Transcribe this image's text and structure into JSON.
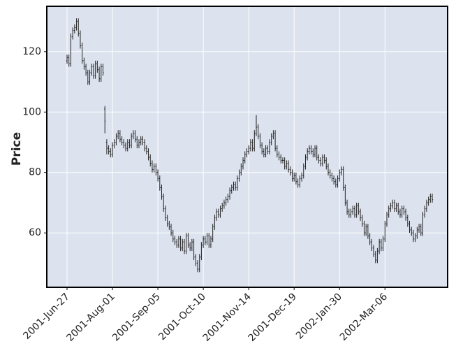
{
  "chart_data": {
    "type": "ohlc",
    "ylabel": "Price",
    "color": "#222222",
    "grid": true,
    "ylim": [
      42,
      135
    ],
    "yticks": [
      60,
      80,
      100,
      120
    ],
    "categories": [
      "2001-Jun-27",
      null,
      null,
      null,
      null,
      null,
      null,
      null,
      null,
      null,
      null,
      null,
      null,
      null,
      null,
      null,
      null,
      null,
      null,
      null,
      null,
      null,
      null,
      null,
      "2001-Aug-01",
      null,
      null,
      null,
      null,
      null,
      null,
      null,
      null,
      null,
      null,
      null,
      null,
      null,
      null,
      null,
      null,
      null,
      null,
      null,
      null,
      null,
      null,
      null,
      "2001-Sep-05",
      null,
      null,
      null,
      null,
      null,
      null,
      null,
      null,
      null,
      null,
      null,
      null,
      null,
      null,
      null,
      null,
      null,
      null,
      null,
      null,
      null,
      null,
      null,
      "2001-Oct-10",
      null,
      null,
      null,
      null,
      null,
      null,
      null,
      null,
      null,
      null,
      null,
      null,
      null,
      null,
      null,
      null,
      null,
      null,
      null,
      null,
      null,
      null,
      null,
      "2001-Nov-14",
      null,
      null,
      null,
      null,
      null,
      null,
      null,
      null,
      null,
      null,
      null,
      null,
      null,
      null,
      null,
      null,
      null,
      null,
      null,
      null,
      null,
      null,
      null,
      "2001-Dec-19",
      null,
      null,
      null,
      null,
      null,
      null,
      null,
      null,
      null,
      null,
      null,
      null,
      null,
      null,
      null,
      null,
      null,
      null,
      null,
      null,
      null,
      null,
      null,
      "2002-Jan-30",
      null,
      null,
      null,
      null,
      null,
      null,
      null,
      null,
      null,
      null,
      null,
      null,
      null,
      null,
      null,
      null,
      null,
      null,
      null,
      null,
      null,
      null,
      null,
      "2002-Mar-06",
      null,
      null,
      null,
      null,
      null,
      null,
      null,
      null,
      null,
      null,
      null,
      null,
      null,
      null,
      null,
      null,
      null,
      null,
      null,
      null,
      null,
      null,
      null,
      null,
      null
    ],
    "open": [
      117,
      118,
      116,
      125,
      127,
      128,
      130,
      126,
      122,
      117,
      115,
      113,
      110,
      113,
      115,
      112,
      116,
      114,
      111,
      115,
      101,
      90,
      88,
      87,
      86,
      89,
      90,
      92,
      93,
      91,
      90,
      89,
      88,
      90,
      89,
      92,
      93,
      91,
      89,
      90,
      91,
      90,
      88,
      87,
      85,
      83,
      81,
      82,
      80,
      78,
      75,
      72,
      68,
      65,
      63,
      62,
      60,
      58,
      57,
      56,
      58,
      55,
      57,
      54,
      59,
      56,
      55,
      57,
      52,
      50,
      48,
      52,
      56,
      58,
      57,
      59,
      56,
      58,
      62,
      65,
      67,
      66,
      68,
      69,
      70,
      71,
      72,
      74,
      75,
      76,
      75,
      78,
      80,
      82,
      84,
      86,
      87,
      88,
      90,
      88,
      93,
      95,
      92,
      89,
      87,
      86,
      88,
      87,
      90,
      92,
      93,
      88,
      86,
      85,
      84,
      84,
      82,
      83,
      81,
      80,
      78,
      79,
      77,
      76,
      78,
      79,
      82,
      85,
      87,
      88,
      87,
      86,
      88,
      85,
      84,
      83,
      85,
      84,
      82,
      80,
      79,
      78,
      77,
      76,
      78,
      80,
      81,
      75,
      70,
      67,
      66,
      67,
      68,
      66,
      69,
      67,
      65,
      63,
      60,
      62,
      59,
      57,
      55,
      53,
      51,
      54,
      57,
      55,
      58,
      63,
      66,
      68,
      69,
      70,
      68,
      69,
      67,
      66,
      68,
      67,
      65,
      63,
      61,
      60,
      58,
      59,
      61,
      62,
      60,
      66,
      68,
      70,
      71,
      72
    ],
    "high": [
      119,
      119,
      126,
      128,
      129,
      131,
      131,
      127,
      123,
      118,
      116,
      114,
      114,
      116,
      116,
      117,
      117,
      115,
      116,
      116,
      102,
      91,
      89,
      88,
      90,
      91,
      93,
      94,
      94,
      92,
      91,
      90,
      91,
      91,
      93,
      94,
      94,
      92,
      91,
      92,
      92,
      91,
      89,
      88,
      86,
      84,
      83,
      83,
      81,
      79,
      76,
      73,
      69,
      66,
      64,
      63,
      61,
      59,
      58,
      59,
      59,
      58,
      58,
      60,
      60,
      57,
      58,
      58,
      53,
      51,
      53,
      57,
      59,
      59,
      60,
      60,
      59,
      63,
      66,
      68,
      68,
      69,
      70,
      71,
      72,
      73,
      75,
      76,
      77,
      77,
      79,
      81,
      83,
      85,
      87,
      88,
      89,
      91,
      91,
      94,
      99,
      96,
      93,
      90,
      88,
      89,
      89,
      91,
      93,
      94,
      94,
      89,
      87,
      86,
      85,
      85,
      84,
      84,
      82,
      81,
      80,
      80,
      78,
      79,
      80,
      83,
      86,
      88,
      89,
      89,
      88,
      89,
      89,
      86,
      85,
      86,
      86,
      85,
      83,
      81,
      80,
      79,
      78,
      79,
      81,
      82,
      82,
      76,
      71,
      68,
      68,
      69,
      69,
      70,
      70,
      68,
      66,
      64,
      63,
      63,
      60,
      58,
      56,
      54,
      55,
      58,
      58,
      59,
      64,
      67,
      69,
      70,
      71,
      71,
      70,
      70,
      68,
      69,
      69,
      68,
      66,
      64,
      62,
      61,
      60,
      62,
      63,
      63,
      67,
      69,
      71,
      72,
      73,
      73
    ],
    "low": [
      116,
      115,
      115,
      124,
      126,
      127,
      125,
      121,
      116,
      114,
      112,
      109,
      109,
      112,
      111,
      111,
      113,
      110,
      110,
      112,
      93,
      86,
      86,
      85,
      85,
      88,
      89,
      91,
      90,
      89,
      88,
      87,
      87,
      88,
      88,
      91,
      90,
      88,
      88,
      89,
      89,
      87,
      86,
      84,
      82,
      80,
      80,
      79,
      77,
      74,
      71,
      67,
      64,
      62,
      61,
      59,
      57,
      56,
      55,
      55,
      54,
      54,
      53,
      53,
      55,
      54,
      54,
      51,
      49,
      47,
      47,
      51,
      55,
      56,
      56,
      55,
      55,
      57,
      61,
      64,
      65,
      65,
      67,
      68,
      69,
      70,
      71,
      73,
      74,
      74,
      74,
      77,
      79,
      81,
      83,
      85,
      86,
      87,
      87,
      87,
      92,
      91,
      88,
      86,
      85,
      85,
      86,
      86,
      89,
      91,
      87,
      85,
      84,
      83,
      83,
      81,
      81,
      80,
      79,
      77,
      77,
      76,
      75,
      75,
      77,
      78,
      81,
      84,
      86,
      86,
      85,
      85,
      84,
      83,
      82,
      82,
      83,
      81,
      79,
      78,
      77,
      76,
      75,
      75,
      77,
      79,
      74,
      69,
      66,
      65,
      65,
      66,
      65,
      65,
      66,
      64,
      62,
      59,
      59,
      58,
      56,
      54,
      52,
      50,
      50,
      53,
      54,
      54,
      57,
      62,
      65,
      67,
      68,
      67,
      67,
      66,
      65,
      65,
      66,
      64,
      62,
      60,
      59,
      57,
      57,
      58,
      60,
      59,
      59,
      65,
      67,
      69,
      70,
      70
    ],
    "close": [
      118,
      116,
      125,
      127,
      128,
      130,
      126,
      122,
      117,
      115,
      113,
      110,
      113,
      115,
      112,
      116,
      114,
      111,
      115,
      113,
      97,
      88,
      87,
      86,
      89,
      90,
      92,
      93,
      91,
      90,
      89,
      88,
      90,
      89,
      92,
      93,
      91,
      89,
      90,
      91,
      90,
      88,
      87,
      85,
      83,
      81,
      82,
      80,
      78,
      75,
      72,
      68,
      65,
      63,
      62,
      60,
      58,
      57,
      56,
      58,
      55,
      57,
      54,
      59,
      56,
      55,
      57,
      52,
      50,
      48,
      52,
      56,
      58,
      57,
      59,
      56,
      58,
      62,
      65,
      67,
      66,
      68,
      69,
      70,
      71,
      72,
      74,
      75,
      76,
      75,
      78,
      80,
      82,
      84,
      86,
      87,
      88,
      90,
      88,
      93,
      95,
      92,
      89,
      87,
      86,
      88,
      87,
      90,
      92,
      93,
      88,
      86,
      85,
      84,
      84,
      82,
      83,
      81,
      80,
      78,
      79,
      77,
      76,
      78,
      79,
      82,
      85,
      87,
      88,
      87,
      86,
      88,
      85,
      84,
      83,
      85,
      84,
      82,
      80,
      79,
      78,
      77,
      76,
      78,
      80,
      81,
      75,
      70,
      67,
      66,
      67,
      68,
      66,
      69,
      67,
      65,
      63,
      60,
      62,
      59,
      57,
      55,
      53,
      51,
      54,
      57,
      55,
      58,
      63,
      66,
      68,
      69,
      70,
      68,
      69,
      67,
      66,
      68,
      67,
      65,
      63,
      61,
      60,
      58,
      59,
      61,
      62,
      60,
      66,
      68,
      70,
      71,
      72,
      71
    ]
  }
}
